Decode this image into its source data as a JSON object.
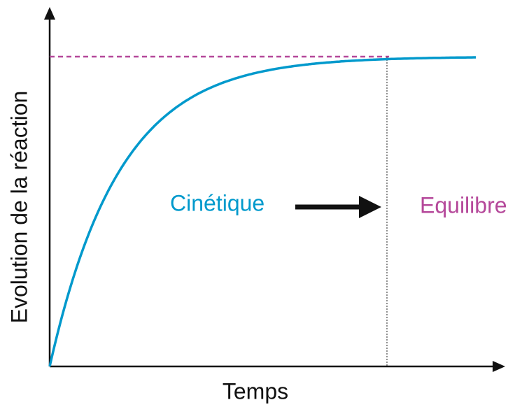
{
  "axes": {
    "y_label": "Evolution de la réaction",
    "x_label": "Temps"
  },
  "labels": {
    "kinetics": "Cinétique",
    "equilibrium": "Equilibre"
  }
}
